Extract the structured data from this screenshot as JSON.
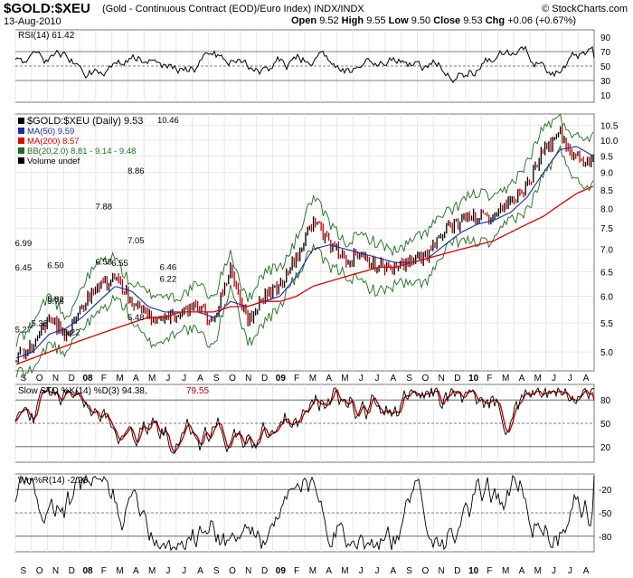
{
  "header": {
    "symbol": "$GOLD:$XEU",
    "description": "(Gold - Continuous Contract (EOD)/Euro Index) INDX/INDX",
    "date": "13-Aug-2010",
    "open_label": "Open",
    "open": "9.52",
    "high_label": "High",
    "high": "9.55",
    "low_label": "Low",
    "low": "9.50",
    "close_label": "Close",
    "close": "9.53",
    "chg_label": "Chg",
    "chg": "+0.06 (+0.67%)",
    "brand": "© StockCharts.com"
  },
  "panels": {
    "rsi": {
      "label": "RSI(14) 61.42",
      "ticks": [
        "90",
        "70",
        "50",
        "30",
        "10"
      ]
    },
    "price": {
      "legend": [
        {
          "text": "$GOLD:$XEU (Daily) 9.53",
          "color": "#000000"
        },
        {
          "text": "MA(50) 9.59",
          "color": "#1a2aa8"
        },
        {
          "text": "MA(200) 8.57",
          "color": "#e00000"
        },
        {
          "text": "BB(20,2.0) 8.81 - 9.14 - 9.48",
          "color": "#1a6e1a"
        },
        {
          "text": "Volume undef",
          "color": "#000000"
        }
      ],
      "ticks": [
        "10.5",
        "10.0",
        "9.5",
        "9.0",
        "8.5",
        "8.0",
        "7.5",
        "7.0",
        "6.5",
        "6.0",
        "5.5",
        "5.0"
      ]
    },
    "sto": {
      "label_a": "Slow STO %K(14) %D(3) 94.38,",
      "label_b": "79.55",
      "ticks": [
        "80",
        "50",
        "20"
      ]
    },
    "wmr": {
      "label": "Wm%R(14) -2.28",
      "ticks": [
        "-20",
        "-50",
        "-80"
      ]
    }
  },
  "x_axis": [
    "S",
    "O",
    "N",
    "D",
    "08",
    "F",
    "M",
    "A",
    "M",
    "J",
    "J",
    "A",
    "S",
    "O",
    "N",
    "D",
    "09",
    "F",
    "M",
    "A",
    "M",
    "J",
    "J",
    "A",
    "S",
    "O",
    "N",
    "D",
    "10",
    "F",
    "M",
    "A",
    "M",
    "J",
    "J",
    "A"
  ],
  "annotations": [
    "5.78",
    "5.22",
    "6.58",
    "5.48",
    "6.22",
    "6.45",
    "6.99",
    "5.27",
    "5.38",
    "6.50",
    "5.82",
    "7.88",
    "6.55",
    "7.05",
    "6.46",
    "10.46",
    "8.86"
  ],
  "colors": {
    "price_bar_up": "#000000",
    "price_bar_down": "#c00000",
    "ma50": "#1a2aa8",
    "ma200": "#e00000",
    "bollinger": "#1a6e1a",
    "sto_k": "#000000",
    "sto_d": "#c00000",
    "overbought_fill": "#2e6b2e",
    "oversold_fill": "#8a3a3a"
  },
  "chart_data": [
    {
      "type": "line",
      "title": "RSI(14) 61.42",
      "ylim": [
        0,
        100
      ],
      "reference_lines": [
        70,
        30
      ],
      "last_value": 61.42
    },
    {
      "type": "line",
      "title": "$GOLD:$XEU (Daily) 9.53",
      "scale": "log",
      "ylim": [
        4.7,
        10.9
      ],
      "x": [
        "S",
        "O",
        "N",
        "D",
        "08",
        "F",
        "M",
        "A",
        "M",
        "J",
        "J",
        "A",
        "S",
        "O",
        "N",
        "D",
        "09",
        "F",
        "M",
        "A",
        "M",
        "J",
        "J",
        "A",
        "S",
        "O",
        "N",
        "D",
        "10",
        "F",
        "M",
        "A",
        "M",
        "J",
        "J",
        "A"
      ],
      "series": [
        {
          "name": "$GOLD:$XEU (Daily) 9.53",
          "values": [
            4.9,
            5.1,
            5.6,
            5.3,
            5.8,
            6.2,
            6.4,
            5.9,
            5.6,
            5.6,
            5.7,
            5.8,
            5.5,
            6.6,
            5.5,
            6.0,
            6.2,
            6.8,
            7.7,
            7.1,
            6.8,
            6.8,
            6.6,
            6.6,
            6.7,
            6.9,
            7.4,
            7.7,
            7.8,
            7.7,
            8.2,
            8.6,
            9.7,
            10.2,
            9.4,
            9.4
          ]
        },
        {
          "name": "MA(50) 9.59",
          "values": [
            4.9,
            5.0,
            5.3,
            5.4,
            5.6,
            5.9,
            6.2,
            6.1,
            5.8,
            5.7,
            5.7,
            5.7,
            5.6,
            5.9,
            5.8,
            5.9,
            6.0,
            6.4,
            7.0,
            7.1,
            7.0,
            6.9,
            6.8,
            6.7,
            6.7,
            6.8,
            7.1,
            7.4,
            7.6,
            7.7,
            7.9,
            8.3,
            9.0,
            9.7,
            9.8,
            9.5
          ]
        },
        {
          "name": "MA(200) 8.57",
          "values": [
            4.8,
            4.9,
            5.0,
            5.1,
            5.2,
            5.3,
            5.4,
            5.5,
            5.6,
            5.6,
            5.7,
            5.7,
            5.7,
            5.8,
            5.8,
            5.9,
            5.9,
            6.0,
            6.2,
            6.3,
            6.4,
            6.5,
            6.6,
            6.6,
            6.7,
            6.8,
            6.9,
            7.0,
            7.1,
            7.2,
            7.4,
            7.6,
            7.8,
            8.1,
            8.4,
            8.6
          ]
        }
      ],
      "annotations": [
        {
          "x": "N",
          "label": "5.78"
        },
        {
          "x": "D",
          "label": "5.22"
        },
        {
          "x": "F",
          "label": "6.58"
        },
        {
          "x": "A",
          "label": "5.48"
        },
        {
          "x": "J",
          "label": "6.22"
        },
        {
          "x": "S",
          "label": "6.45"
        },
        {
          "x": "S",
          "label": "6.99"
        },
        {
          "x": "S",
          "label": "5.27"
        },
        {
          "x": "O",
          "label": "5.38"
        },
        {
          "x": "N",
          "label": "6.50"
        },
        {
          "x": "N",
          "label": "5.82"
        },
        {
          "x": "F",
          "label": "7.88"
        },
        {
          "x": "M",
          "label": "6.55"
        },
        {
          "x": "A",
          "label": "7.05"
        },
        {
          "x": "J",
          "label": "6.46"
        },
        {
          "x": "J",
          "label": "10.46"
        },
        {
          "x": "A",
          "label": "8.86"
        }
      ]
    },
    {
      "type": "line",
      "title": "Slow STO %K(14) %D(3) 94.38, 79.55",
      "ylim": [
        0,
        100
      ],
      "reference_lines": [
        80,
        50,
        20
      ],
      "last_values": {
        "%K": 94.38,
        "%D": 79.55
      }
    },
    {
      "type": "line",
      "title": "Wm%R(14) -2.28",
      "ylim": [
        -100,
        0
      ],
      "reference_lines": [
        -20,
        -50,
        -80
      ],
      "last_value": -2.28
    }
  ]
}
